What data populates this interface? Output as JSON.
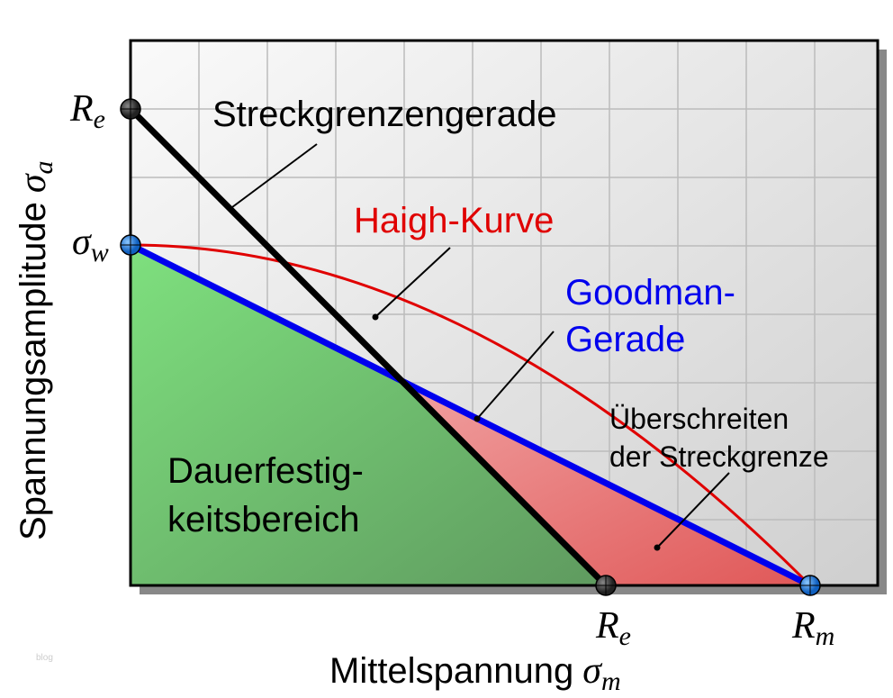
{
  "diagram": {
    "labels": {
      "yield_line": "Streckgrenzengerade",
      "haigh": "Haigh-Kurve",
      "goodman": [
        "Goodman-",
        "Gerade"
      ],
      "exceed": [
        "Überschreiten",
        "der Streckgrenze"
      ],
      "endurance": [
        "Dauerfestig-",
        "keitsbereich"
      ]
    },
    "y_axis": {
      "title": "Spannungsamplitude",
      "symbol": "σ",
      "subscript": "a"
    },
    "x_axis": {
      "title": "Mittelspannung",
      "symbol": "σ",
      "subscript": "m"
    },
    "y_ticks": [
      {
        "symbol": "R",
        "subscript": "e"
      },
      {
        "symbol": "σ",
        "subscript": "w"
      }
    ],
    "x_ticks": [
      {
        "symbol": "R",
        "subscript": "e"
      },
      {
        "symbol": "R",
        "subscript": "m"
      }
    ],
    "watermark": "blog"
  }
}
